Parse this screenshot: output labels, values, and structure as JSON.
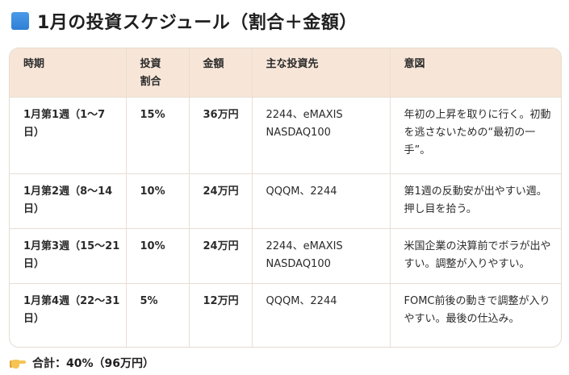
{
  "heading": {
    "icon": "blue-square-icon",
    "title": "1月の投資スケジュール（割合＋金額）"
  },
  "table": {
    "headers": {
      "period": "時期",
      "ratio": "投資\n割合",
      "amount": "金額",
      "target": "主な投資先",
      "intent": "意図"
    },
    "rows": [
      {
        "period": "1月第1週（1〜7日）",
        "ratio": "15%",
        "amount": "36万円",
        "target": "2244、eMAXIS NASDAQ100",
        "intent": "年初の上昇を取りに行く。初動を逃さないための“最初の一手”。"
      },
      {
        "period": "1月第2週（8〜14日）",
        "ratio": "10%",
        "amount": "24万円",
        "target": "QQQM、2244",
        "intent": "第1週の反動安が出やすい週。押し目を拾う。"
      },
      {
        "period": "1月第3週（15〜21日）",
        "ratio": "10%",
        "amount": "24万円",
        "target": "2244、eMAXIS NASDAQ100",
        "intent": "米国企業の決算前でボラが出やすい。調整が入りやすい。"
      },
      {
        "period": "1月第4週（22〜31日）",
        "ratio": "5%",
        "amount": "12万円",
        "target": "QQQM、2244",
        "intent": "FOMC前後の動きで調整が入りやすい。最後の仕込み。"
      }
    ]
  },
  "total": {
    "icon": "pointing-hand-icon",
    "text": "合計：40%（96万円）"
  }
}
